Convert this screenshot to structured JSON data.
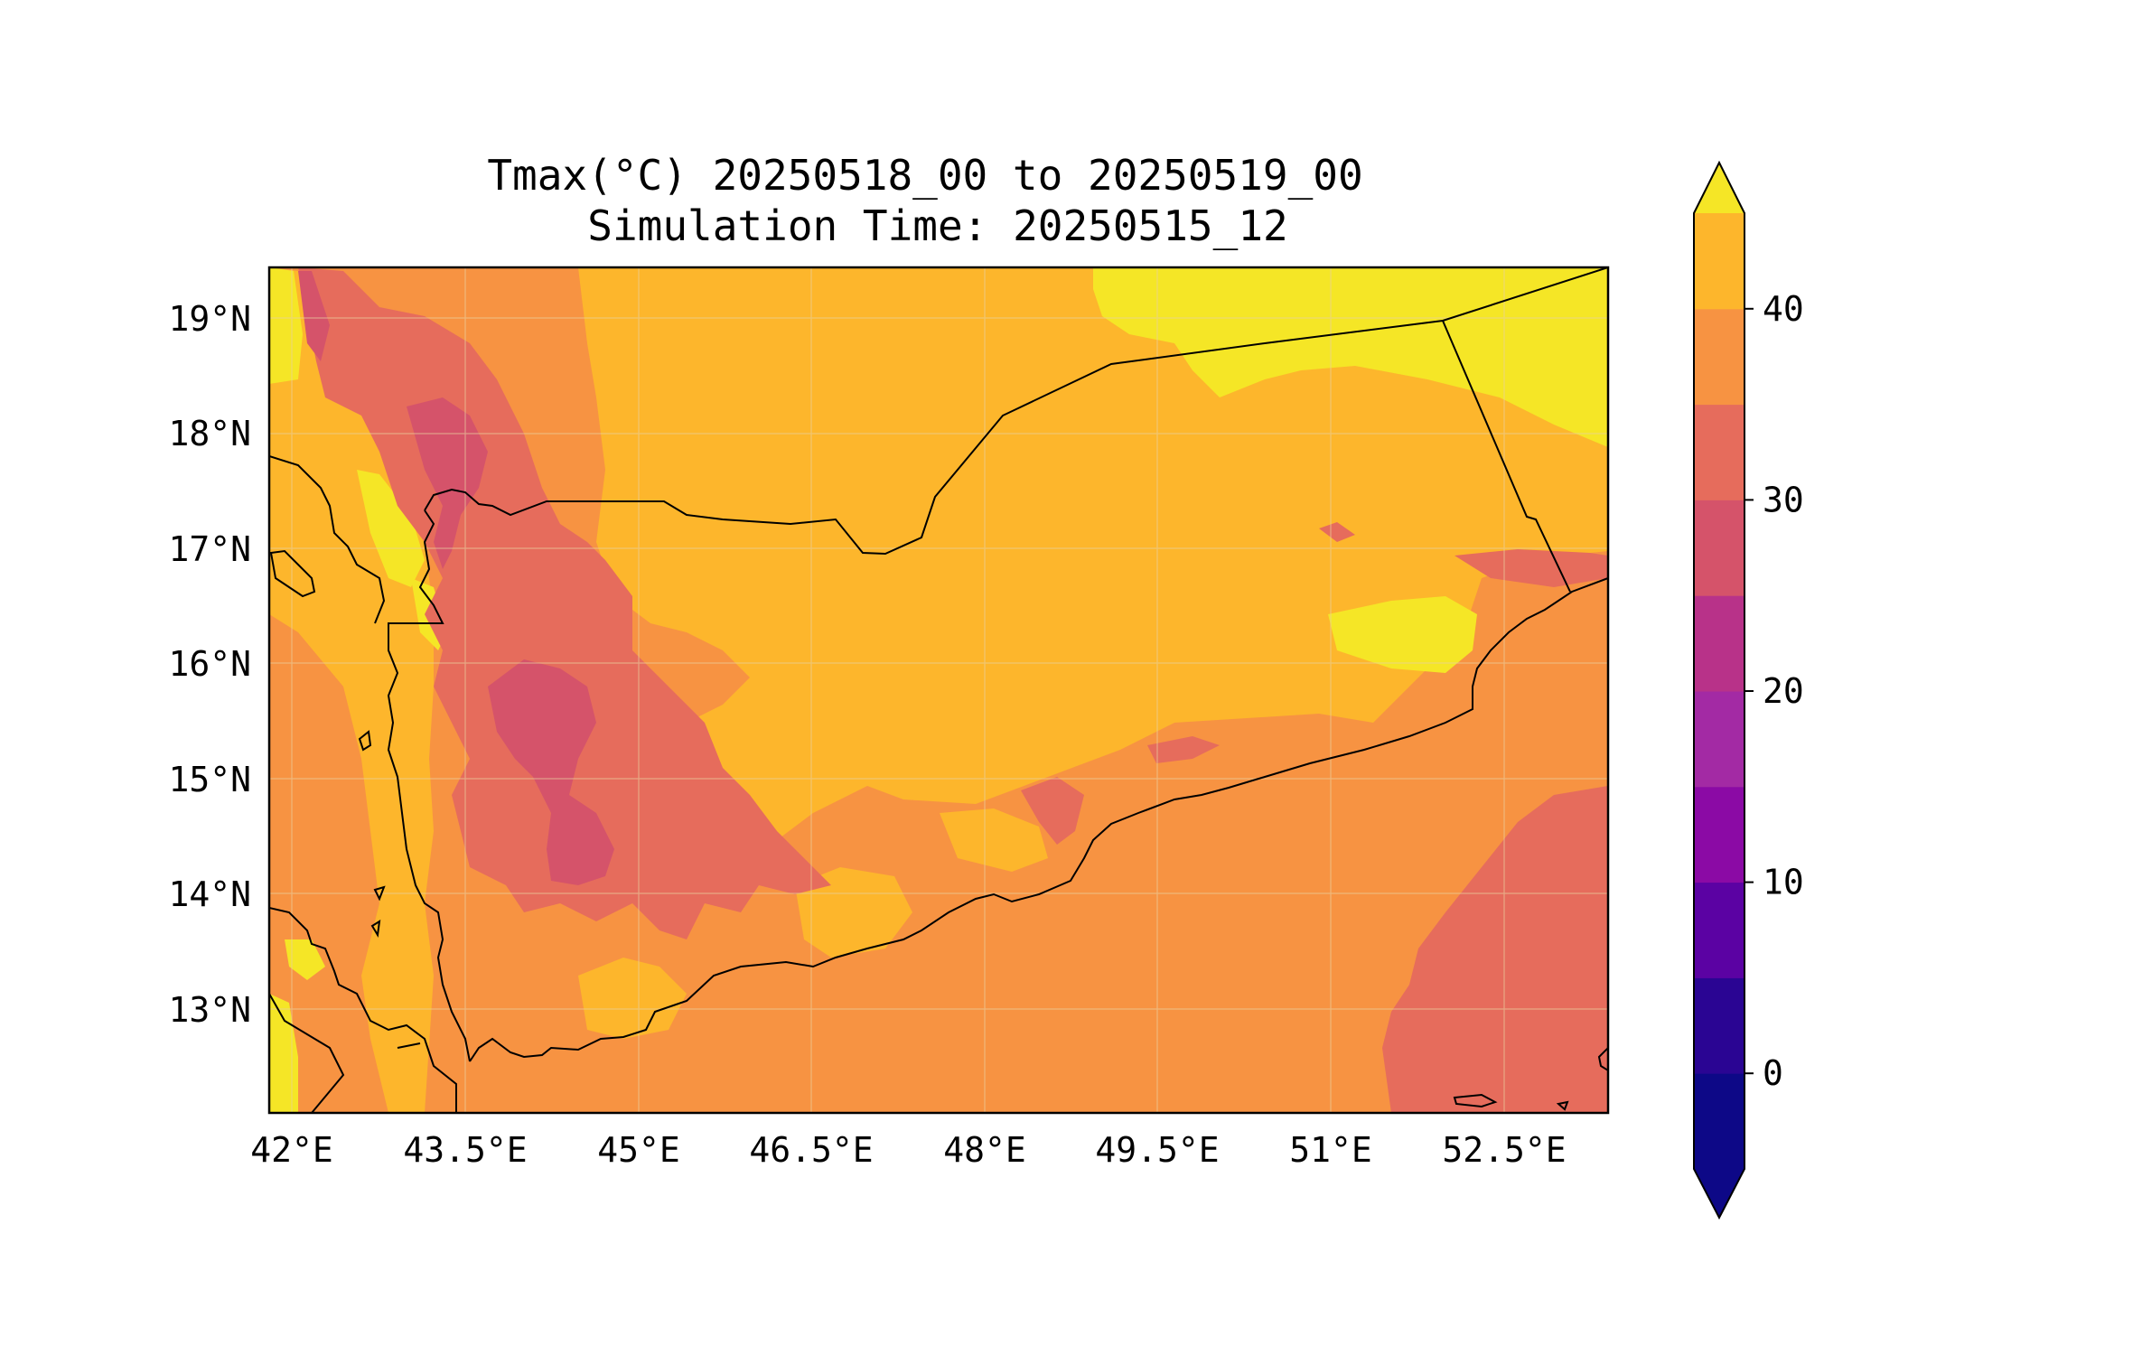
{
  "title": {
    "line1": "Tmax(°C) 20250518_00 to 20250519_00",
    "line2": "Simulation Time: 20250515_12"
  },
  "map": {
    "lon_range": [
      42.0,
      52.8
    ],
    "lat_range": [
      12.1,
      19.45
    ],
    "lon_ticks": [
      "42°E",
      "43.5°E",
      "45°E",
      "46.5°E",
      "48°E",
      "49.5°E",
      "51°E",
      "52.5°E"
    ],
    "lat_ticks": [
      "19°N",
      "18°N",
      "17°N",
      "16°N",
      "15°N",
      "14°N",
      "13°N"
    ],
    "grid": true
  },
  "colorbar": {
    "ticks": [
      "0",
      "10",
      "20",
      "30",
      "40"
    ],
    "levels": [
      -5,
      0,
      5,
      10,
      15,
      20,
      25,
      30,
      35,
      40,
      45
    ],
    "colors": [
      "#0d0887",
      "#2a0593",
      "#5b02a3",
      "#8b0aa5",
      "#a32aa4",
      "#b83289",
      "#d5536a",
      "#e66c5c",
      "#f79342",
      "#fdb62c",
      "#f5e626"
    ],
    "extend": "both"
  },
  "colors": {
    "t25_30": "#e66c5c",
    "t30_35": "#f79342",
    "t35_40": "#fdb62c",
    "t40_45": "#f5e626",
    "t20_25": "#d5536a"
  }
}
